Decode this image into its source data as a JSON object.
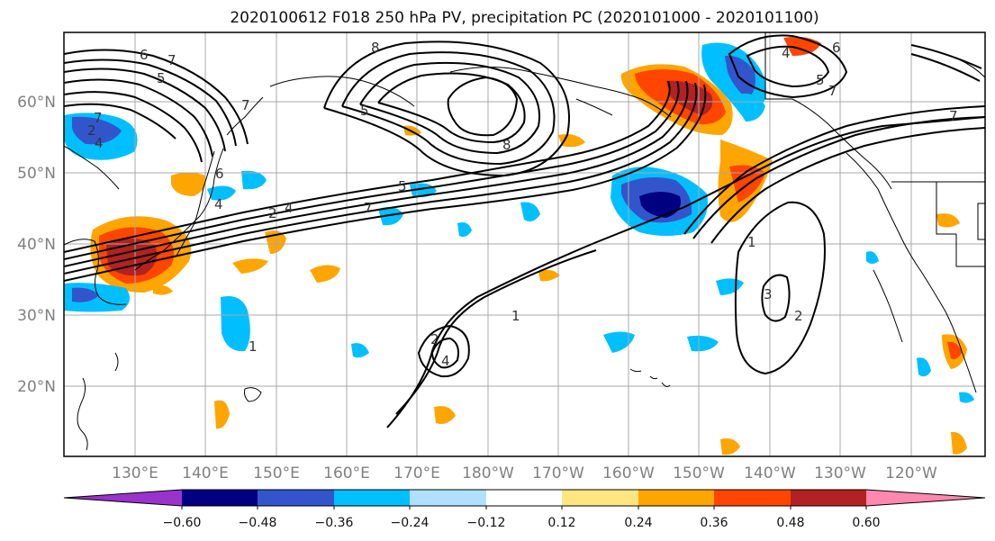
{
  "title": "2020100612 F018 250 hPa PV, precipitation PC (2020101000 - 2020101100)",
  "latitude_labels": [
    "60°N",
    "50°N",
    "40°N",
    "30°N",
    "20°N"
  ],
  "longitude_labels": [
    "130°E",
    "140°E",
    "150°E",
    "160°E",
    "170°E",
    "180°W",
    "170°W",
    "160°W",
    "150°W",
    "140°W",
    "130°W",
    "120°W"
  ],
  "colorbar": {
    "colors": [
      "#9933cc",
      "#000080",
      "#3355cc",
      "#00bfff",
      "#b0e0ff",
      "#ffffff",
      "#ffe680",
      "#ffa500",
      "#ff4500",
      "#b22222",
      "#ff88b0"
    ],
    "tick_labels": [
      "−0.60",
      "−0.48",
      "−0.36",
      "−0.24",
      "−0.12",
      "0.12",
      "0.24",
      "0.36",
      "0.48",
      "0.60"
    ]
  },
  "contour_labels": [
    "6",
    "7",
    "5",
    "4",
    "2",
    "7",
    "8",
    "5",
    "8",
    "7",
    "4",
    "5",
    "7",
    "2",
    "4",
    "6",
    "5",
    "7",
    "6",
    "4",
    "7",
    "1",
    "2",
    "3",
    "1",
    "2",
    "4",
    "1"
  ],
  "fill_colors": {
    "neg_light": "#b0e0ff",
    "neg_mid": "#00bfff",
    "neg_strong": "#3355cc",
    "neg_max": "#000080",
    "pos_light": "#ffe680",
    "pos_mid": "#ffa500",
    "pos_strong": "#ff4500",
    "pos_max": "#b22222"
  }
}
